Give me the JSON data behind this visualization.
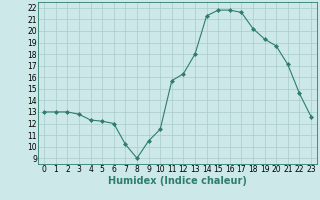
{
  "x": [
    0,
    1,
    2,
    3,
    4,
    5,
    6,
    7,
    8,
    9,
    10,
    11,
    12,
    13,
    14,
    15,
    16,
    17,
    18,
    19,
    20,
    21,
    22,
    23
  ],
  "y": [
    13,
    13,
    13,
    12.8,
    12.3,
    12.2,
    12,
    10.2,
    9.0,
    10.5,
    11.5,
    15.7,
    16.3,
    18,
    21.3,
    21.8,
    21.8,
    21.6,
    20.2,
    19.3,
    18.7,
    17.1,
    14.6,
    12.6
  ],
  "line_color": "#2e7d6e",
  "marker": "D",
  "marker_size": 2,
  "bg_color": "#cce8e8",
  "grid_color": "#aacccc",
  "xlabel": "Humidex (Indice chaleur)",
  "ylim_min": 8.5,
  "ylim_max": 22.5,
  "xlim_min": -0.5,
  "xlim_max": 23.5,
  "yticks": [
    9,
    10,
    11,
    12,
    13,
    14,
    15,
    16,
    17,
    18,
    19,
    20,
    21,
    22
  ],
  "xticks": [
    0,
    1,
    2,
    3,
    4,
    5,
    6,
    7,
    8,
    9,
    10,
    11,
    12,
    13,
    14,
    15,
    16,
    17,
    18,
    19,
    20,
    21,
    22,
    23
  ],
  "tick_fontsize": 5.5,
  "xlabel_fontsize": 7,
  "xlabel_fontweight": "bold",
  "linewidth": 0.8
}
